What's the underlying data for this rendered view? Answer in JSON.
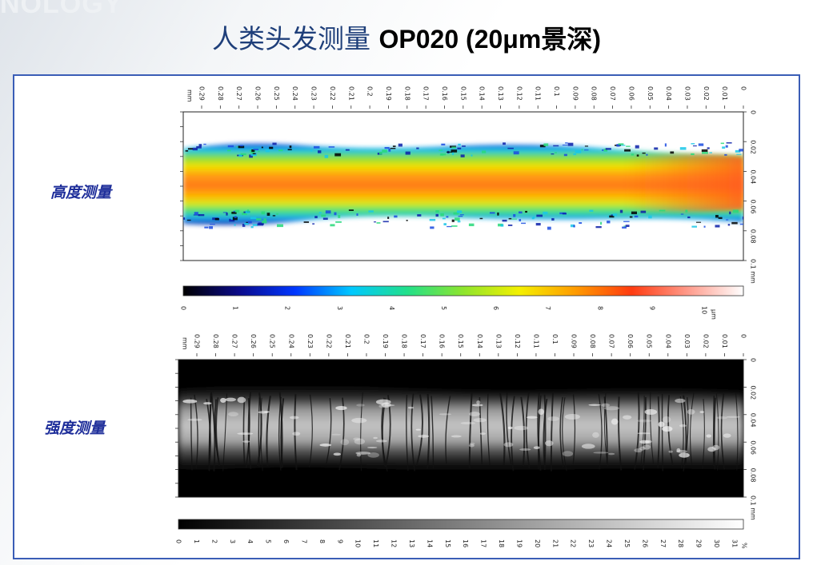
{
  "watermark": "NOLOGY",
  "title": {
    "cn": "人类头发测量",
    "en": "OP020 (20μm景深)"
  },
  "panels": {
    "height": {
      "label": "高度测量",
      "x_unit": "mm",
      "y_unit": "mm",
      "x_ticks": [
        "0.29",
        "0.28",
        "0.27",
        "0.26",
        "0.25",
        "0.24",
        "0.23",
        "0.22",
        "0.21",
        "0.2",
        "0.19",
        "0.18",
        "0.17",
        "0.16",
        "0.15",
        "0.14",
        "0.13",
        "0.12",
        "0.11",
        "0.1",
        "0.09",
        "0.08",
        "0.07",
        "0.06",
        "0.05",
        "0.04",
        "0.03",
        "0.02",
        "0.01",
        "0"
      ],
      "y_ticks": [
        "0",
        "0.02",
        "0.04",
        "0.06",
        "0.08",
        "0.1"
      ],
      "colorbar_ticks": [
        "0",
        "1",
        "2",
        "3",
        "4",
        "5",
        "6",
        "7",
        "8",
        "9",
        "10"
      ],
      "colorbar_unit": "μm",
      "colorbar_colors": [
        "#000000",
        "#0a0a8a",
        "#0037ff",
        "#00c8ff",
        "#22e08a",
        "#8ee52d",
        "#f4f000",
        "#ff9b00",
        "#ff3b10",
        "#ff9a8a",
        "#ffffff"
      ]
    },
    "intensity": {
      "label": "强度测量",
      "x_unit": "mm",
      "y_unit": "mm",
      "x_ticks": [
        "0.29",
        "0.28",
        "0.27",
        "0.26",
        "0.25",
        "0.24",
        "0.23",
        "0.22",
        "0.21",
        "0.2",
        "0.19",
        "0.18",
        "0.17",
        "0.16",
        "0.15",
        "0.14",
        "0.13",
        "0.12",
        "0.11",
        "0.1",
        "0.09",
        "0.08",
        "0.07",
        "0.06",
        "0.05",
        "0.04",
        "0.03",
        "0.02",
        "0.01",
        "0"
      ],
      "y_ticks": [
        "0",
        "0.02",
        "0.04",
        "0.06",
        "0.08",
        "0.1"
      ],
      "colorbar_ticks": [
        "0",
        "1",
        "2",
        "3",
        "4",
        "5",
        "6",
        "7",
        "8",
        "9",
        "10",
        "11",
        "12",
        "13",
        "14",
        "15",
        "16",
        "17",
        "18",
        "19",
        "20",
        "21",
        "22",
        "23",
        "24",
        "25",
        "26",
        "27",
        "28",
        "29",
        "30",
        "31"
      ],
      "colorbar_unit": "%",
      "colorbar_colors": [
        "#000000",
        "#ffffff"
      ]
    }
  }
}
